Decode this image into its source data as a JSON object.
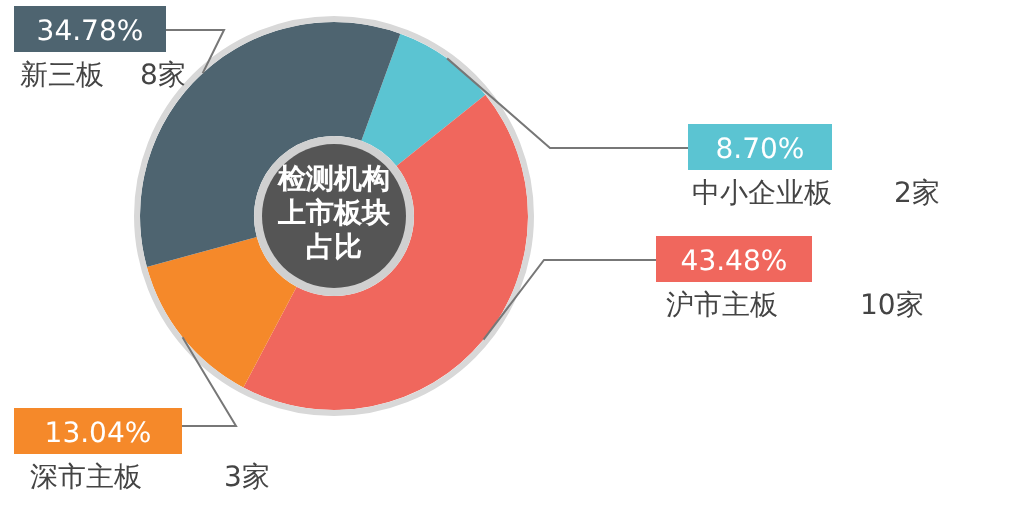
{
  "chart_data": {
    "type": "donut",
    "title": "检测机构上市板块占比",
    "categories": [
      "中小企业板",
      "沪市主板",
      "深市主板",
      "新三板"
    ],
    "values": [
      8.7,
      43.48,
      13.04,
      34.78
    ],
    "colors": [
      "#5bc4d2",
      "#f0675d",
      "#f5892a",
      "#4e6470"
    ],
    "value_labels": [
      "8.70%",
      "43.48%",
      "13.04%",
      "34.78%"
    ],
    "annotations": [
      {
        "text": "2家",
        "x": "中小企业板"
      },
      {
        "text": "10家",
        "x": "沪市主板"
      },
      {
        "text": "3家",
        "x": "深市主板"
      },
      {
        "text": "8家",
        "x": "新三板"
      }
    ]
  }
}
